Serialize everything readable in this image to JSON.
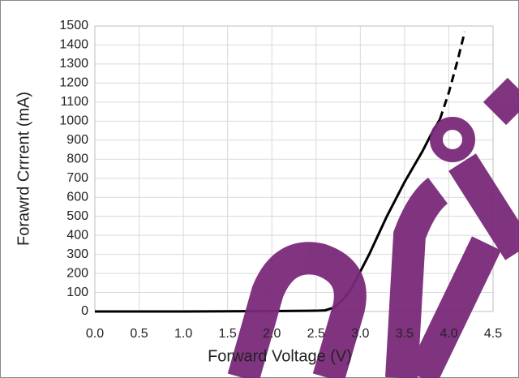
{
  "chart_data": {
    "type": "line",
    "x_label": "Forward Voltage (V)",
    "y_label": "Forawrd Crrrent (mA)",
    "x": [
      0.0,
      0.5,
      1.0,
      1.5,
      2.0,
      2.5,
      2.6,
      2.7,
      2.8,
      2.9,
      3.0,
      3.1,
      3.2,
      3.3,
      3.4,
      3.5,
      3.6,
      3.7,
      3.8,
      3.9,
      4.0,
      4.1,
      4.18
    ],
    "series": [
      {
        "color": "#000000",
        "dash": false,
        "values": [
          0,
          0,
          0,
          1,
          2,
          4,
          6,
          20,
          60,
          120,
          210,
          300,
          400,
          500,
          590,
          680,
          760,
          840,
          930,
          1010,
          null,
          null,
          null
        ]
      },
      {
        "color": "#000000",
        "dash": true,
        "values": [
          null,
          null,
          null,
          null,
          null,
          null,
          null,
          null,
          null,
          null,
          null,
          null,
          null,
          null,
          null,
          null,
          null,
          null,
          null,
          1010,
          1150,
          1320,
          1470
        ]
      }
    ],
    "xlim": [
      0,
      4.5
    ],
    "xticks": [
      {
        "value": 0,
        "label": "0.0"
      },
      0.5,
      {
        "value": 1,
        "label": "1.0"
      },
      1.5,
      {
        "value": 2,
        "label": "2.0"
      },
      2.5,
      {
        "value": 3,
        "label": "3.0"
      },
      3.5,
      {
        "value": 4,
        "label": "4.0"
      },
      4.5
    ],
    "ylim": [
      0,
      1500
    ],
    "yticks": [
      0,
      100,
      200,
      300,
      400,
      500,
      600,
      700,
      800,
      900,
      1000,
      1100,
      1200,
      1300,
      1400,
      1500
    ],
    "grid": true
  }
}
